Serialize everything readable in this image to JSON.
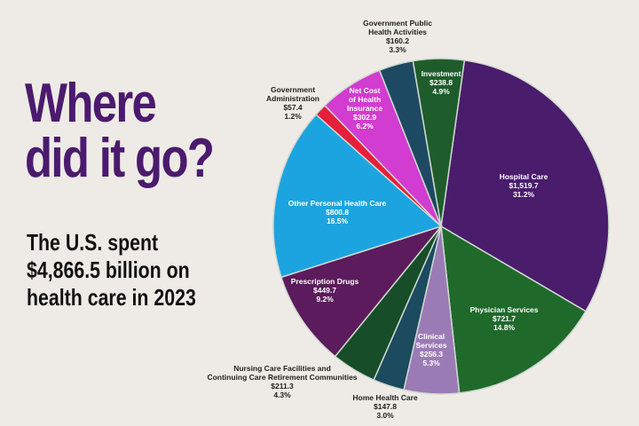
{
  "headline": {
    "line1": "Where",
    "line2": "did it go?"
  },
  "subtitle": {
    "line1": "The U.S. spent",
    "line2": "$4,866.5 billion on",
    "line3": "health care in 2023"
  },
  "chart_data": {
    "type": "pie",
    "title": "Where did it go?",
    "subtitle": "The U.S. spent $4,866.5 billion on health care in 2023",
    "unit": "billion USD",
    "slices": [
      {
        "name": "Hospital Care",
        "value_label": "$1,519.7",
        "value": 1519.7,
        "percent": 31.2,
        "percent_label": "31.2%",
        "color": "#4a1c6c"
      },
      {
        "name": "Physician Services",
        "value_label": "$721.7",
        "value": 721.7,
        "percent": 14.8,
        "percent_label": "14.8%",
        "color": "#1f6a2b"
      },
      {
        "name": "Clinical Services",
        "value_label": "$256.3",
        "value": 256.3,
        "percent": 5.3,
        "percent_label": "5.3%",
        "color": "#9b7bb6"
      },
      {
        "name": "Home Health Care",
        "value_label": "$147.8",
        "value": 147.8,
        "percent": 3.0,
        "percent_label": "3.0%",
        "color": "#1c4a5e"
      },
      {
        "name": "Nursing Care Facilities and Continuing Care Retirement Communities",
        "value_label": "$211.3",
        "value": 211.3,
        "percent": 4.3,
        "percent_label": "4.3%",
        "color": "#174d28"
      },
      {
        "name": "Prescription Drugs",
        "value_label": "$449.7",
        "value": 449.7,
        "percent": 9.2,
        "percent_label": "9.2%",
        "color": "#5b1b5c"
      },
      {
        "name": "Other Personal Health Care",
        "value_label": "$800.8",
        "value": 800.8,
        "percent": 16.5,
        "percent_label": "16.5%",
        "color": "#1ca4e0"
      },
      {
        "name": "Government Administration",
        "value_label": "$57.4",
        "value": 57.4,
        "percent": 1.2,
        "percent_label": "1.2%",
        "color": "#e61f3b"
      },
      {
        "name": "Net Cost of Health Insurance",
        "value_label": "$302.9",
        "value": 302.9,
        "percent": 6.2,
        "percent_label": "6.2%",
        "color": "#d23cd0"
      },
      {
        "name": "Government Public Health Activities",
        "value_label": "$160.2",
        "value": 160.2,
        "percent": 3.3,
        "percent_label": "3.3%",
        "color": "#1d4a62"
      },
      {
        "name": "Investment",
        "value_label": "$238.8",
        "value": 238.8,
        "percent": 4.9,
        "percent_label": "4.9%",
        "color": "#1e5d2b"
      }
    ]
  }
}
